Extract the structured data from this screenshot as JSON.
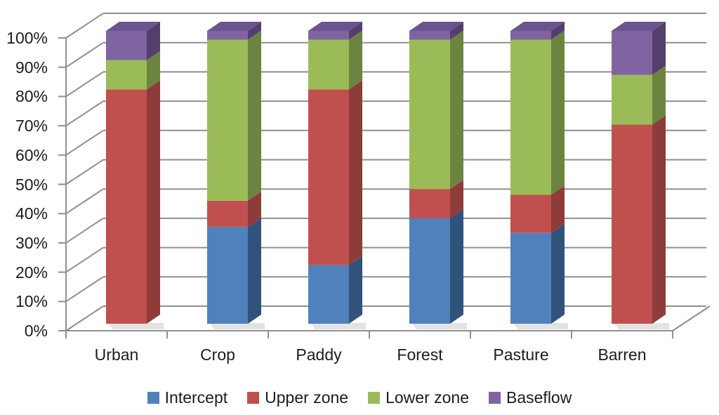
{
  "chart_data": {
    "type": "bar",
    "subtype": "3d-100-percent-stacked-column",
    "title": "",
    "xlabel": "",
    "ylabel": "",
    "categories": [
      "Urban",
      "Crop",
      "Paddy",
      "Forest",
      "Pasture",
      "Barren"
    ],
    "series": [
      {
        "name": "Intercept",
        "color": "#4f81bd",
        "side_color": "#31527a",
        "top_color": "#6b94c6",
        "values": [
          0,
          33,
          20,
          36,
          31,
          0
        ]
      },
      {
        "name": "Upper zone",
        "color": "#c0504d",
        "side_color": "#8d3c3a",
        "top_color": "#a3443f",
        "values": [
          80,
          9,
          60,
          10,
          13,
          68
        ]
      },
      {
        "name": "Lower zone",
        "color": "#9bbb59",
        "side_color": "#6d8440",
        "top_color": "#84a04b",
        "values": [
          10,
          55,
          17,
          51,
          53,
          17
        ]
      },
      {
        "name": "Baseflow",
        "color": "#8064a2",
        "side_color": "#533f6e",
        "top_color": "#6b5390",
        "values": [
          10,
          3,
          3,
          3,
          3,
          15
        ]
      }
    ],
    "y_axis": {
      "min": 0,
      "max": 100,
      "step": 10,
      "tick_labels": [
        "0%",
        "10%",
        "20%",
        "30%",
        "40%",
        "50%",
        "60%",
        "70%",
        "80%",
        "90%",
        "100%"
      ]
    },
    "legend": {
      "position": "bottom",
      "entries": [
        "Intercept",
        "Upper zone",
        "Lower zone",
        "Baseflow"
      ]
    },
    "grid": true,
    "background": "#ffffff",
    "gridline_color": "#8f8f8f",
    "shadow_color": "#d9d9d9",
    "text_color": "#1c1c1c"
  }
}
